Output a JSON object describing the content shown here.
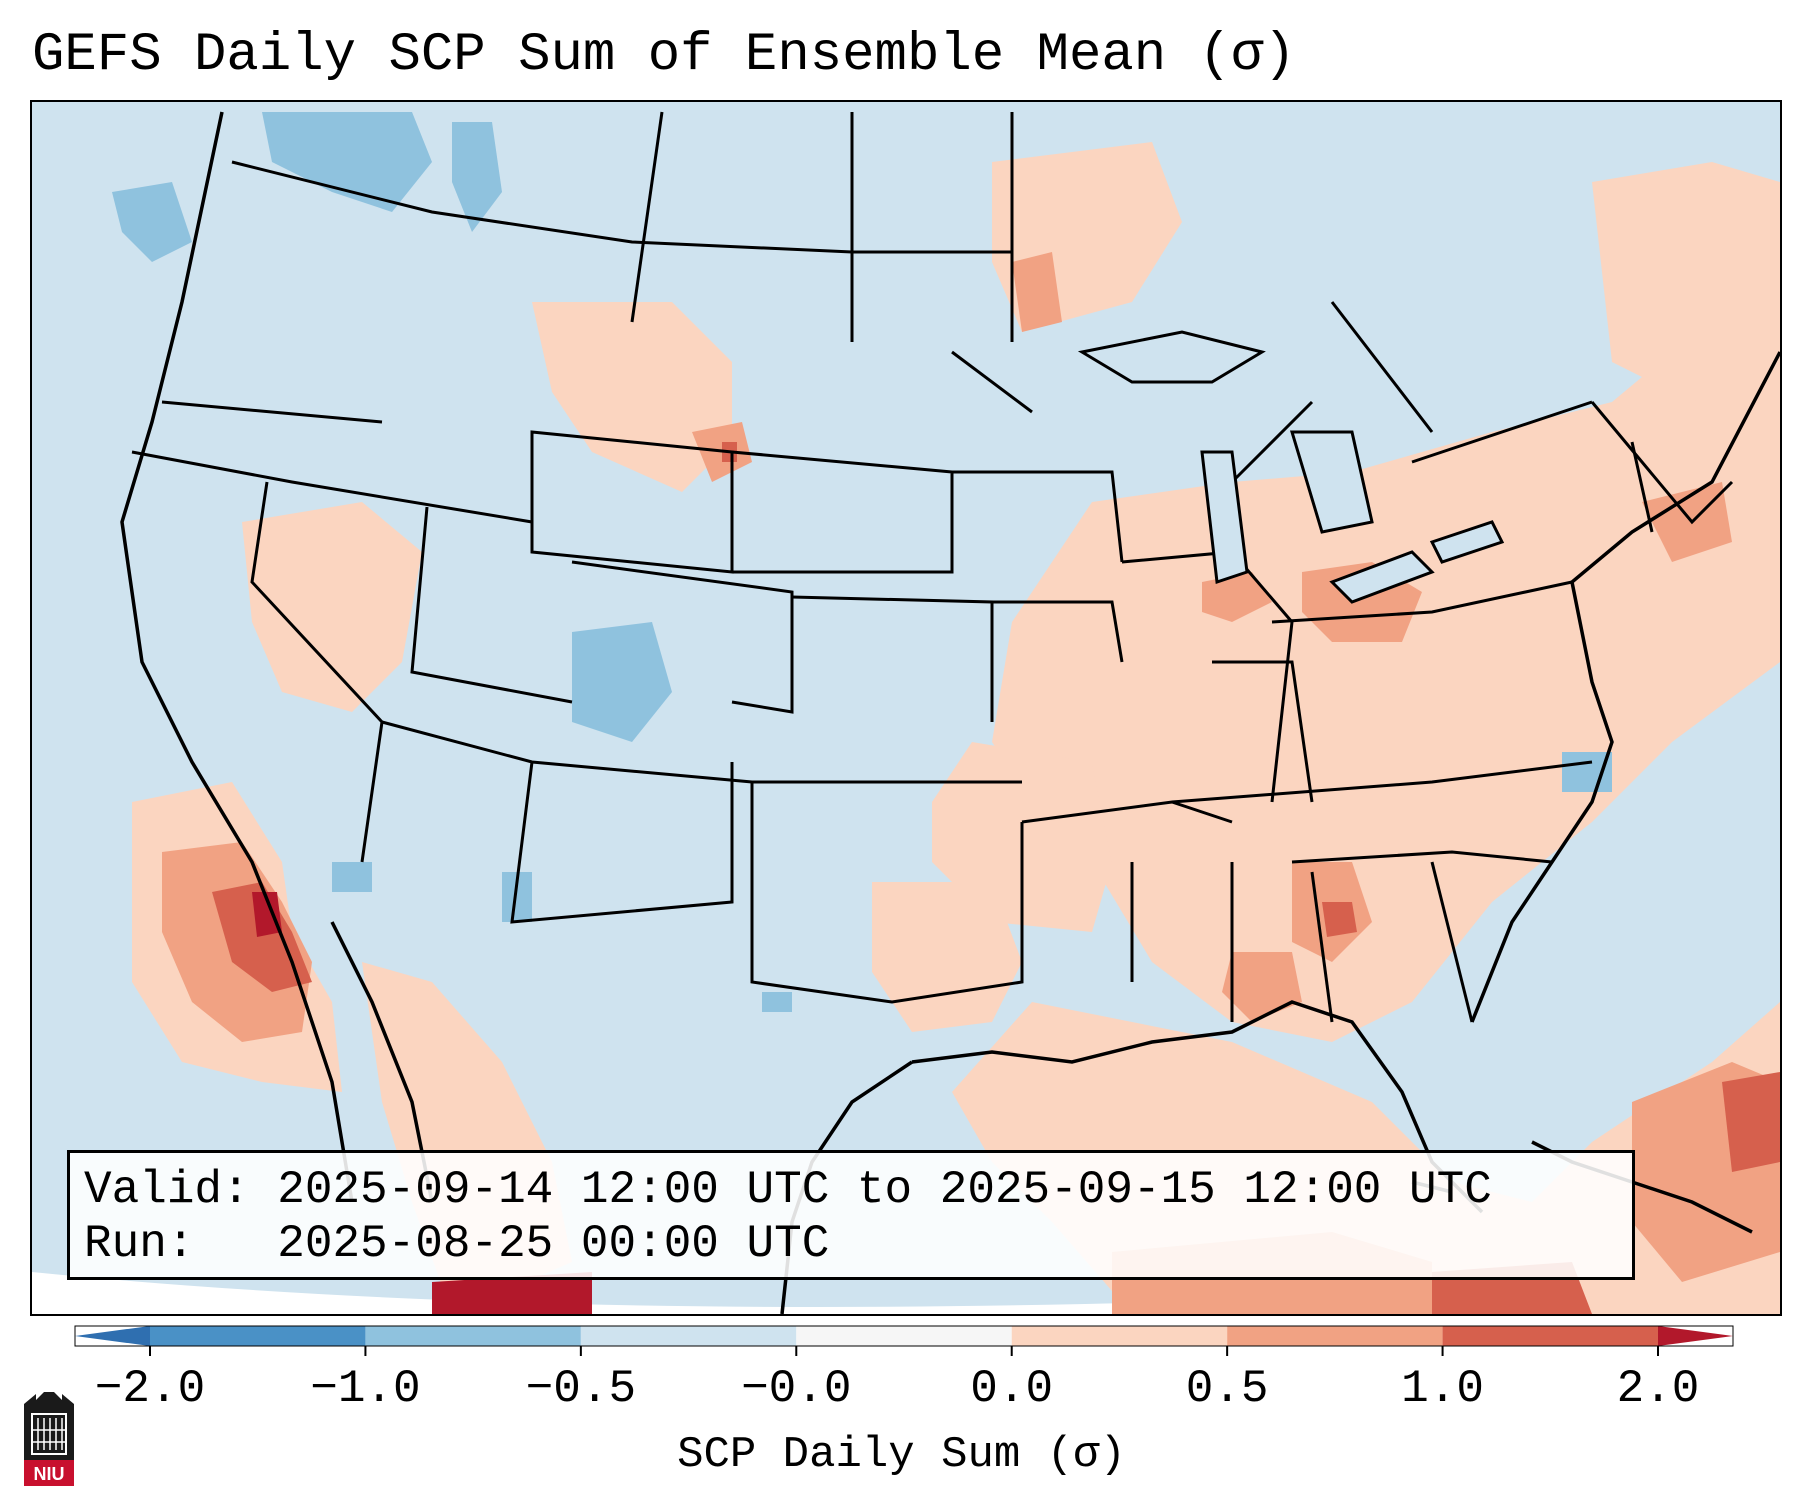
{
  "title": "GEFS Daily SCP Sum of Ensemble Mean (σ)",
  "info": {
    "valid_line": "Valid: 2025-09-14 12:00 UTC to 2025-09-15 12:00 UTC",
    "run_line": "Run:   2025-08-25 00:00 UTC"
  },
  "colorbar": {
    "label": "SCP Daily Sum (σ)",
    "ticks": [
      "−2.0",
      "−1.0",
      "−0.5",
      "−0.0",
      "0.0",
      "0.5",
      "1.0",
      "2.0"
    ],
    "bins": [
      {
        "from": -2.0,
        "to": -1.0,
        "color": "#4a91c6"
      },
      {
        "from": -1.0,
        "to": -0.5,
        "color": "#8fc2de"
      },
      {
        "from": -0.5,
        "to": 0.0,
        "color": "#cfe3ef"
      },
      {
        "from": 0.0,
        "to": 0.0,
        "color": "#f6f6f6"
      },
      {
        "from": 0.0,
        "to": 0.5,
        "color": "#fbd5c0"
      },
      {
        "from": 0.5,
        "to": 1.0,
        "color": "#f1a283"
      },
      {
        "from": 1.0,
        "to": 2.0,
        "color": "#d6604d"
      }
    ],
    "extend_low_color": "#2f6fb0",
    "extend_high_color": "#b2182b"
  },
  "logo_text": "NIU",
  "colors": {
    "background": "#cfe3ef",
    "outside_domain": "#ffffff",
    "borders": "#000000"
  }
}
